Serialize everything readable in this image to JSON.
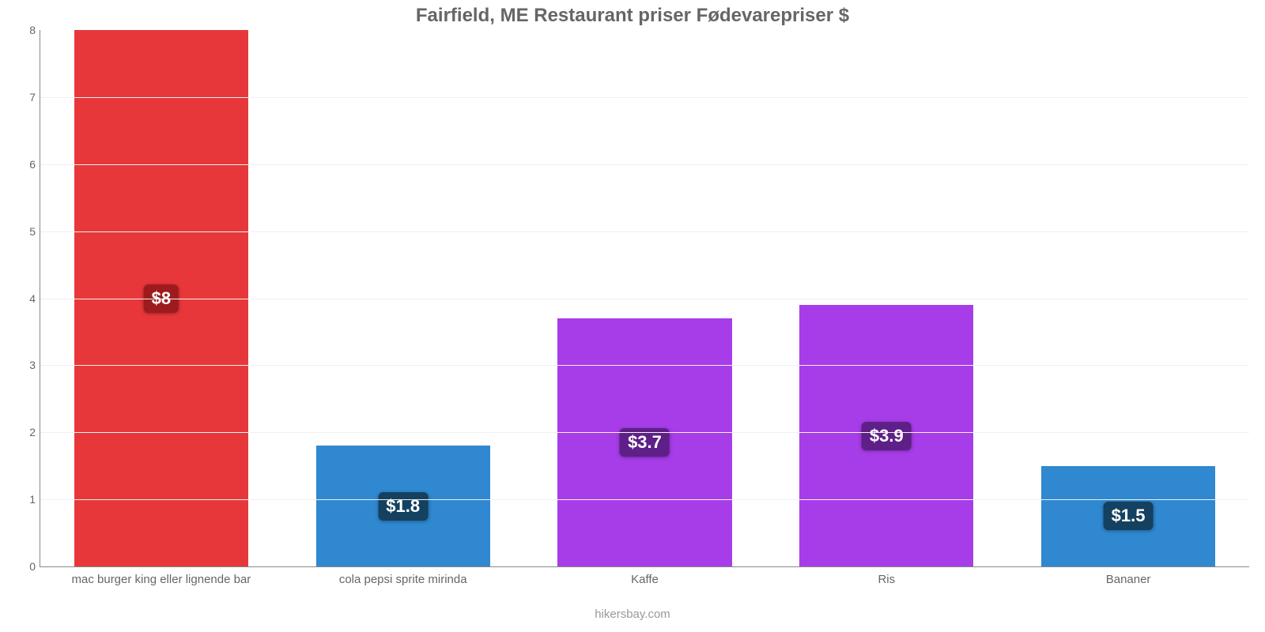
{
  "chart": {
    "type": "bar",
    "title": "Fairfield, ME Restaurant priser Fødevarepriser $",
    "title_fontsize": 24,
    "title_color": "#666666",
    "credit": "hikersbay.com",
    "credit_fontsize": 15,
    "credit_color": "#999999",
    "background_color": "#ffffff",
    "grid_color": "#f0f0f0",
    "axis_color": "#888888",
    "ylim": [
      0,
      8
    ],
    "ytick_step": 1,
    "ytick_fontsize": 14,
    "ytick_color": "#666666",
    "xtick_fontsize": 15,
    "xtick_color": "#666666",
    "bar_width": 0.72,
    "categories": [
      "mac burger king eller lignende bar",
      "cola pepsi sprite mirinda",
      "Kaffe",
      "Ris",
      "Bananer"
    ],
    "values": [
      8,
      1.8,
      3.7,
      3.9,
      1.5
    ],
    "value_labels": [
      "$8",
      "$1.8",
      "$3.7",
      "$3.9",
      "$1.5"
    ],
    "bar_colors": [
      "#e8373a",
      "#2f88d0",
      "#a63de8",
      "#a63de8",
      "#2f88d0"
    ],
    "badge_colors": [
      "#9e1b1d",
      "#144160",
      "#5e1f88",
      "#5e1f88",
      "#144160"
    ],
    "badge_fontsize": 22,
    "badge_text_color": "#ffffff"
  }
}
